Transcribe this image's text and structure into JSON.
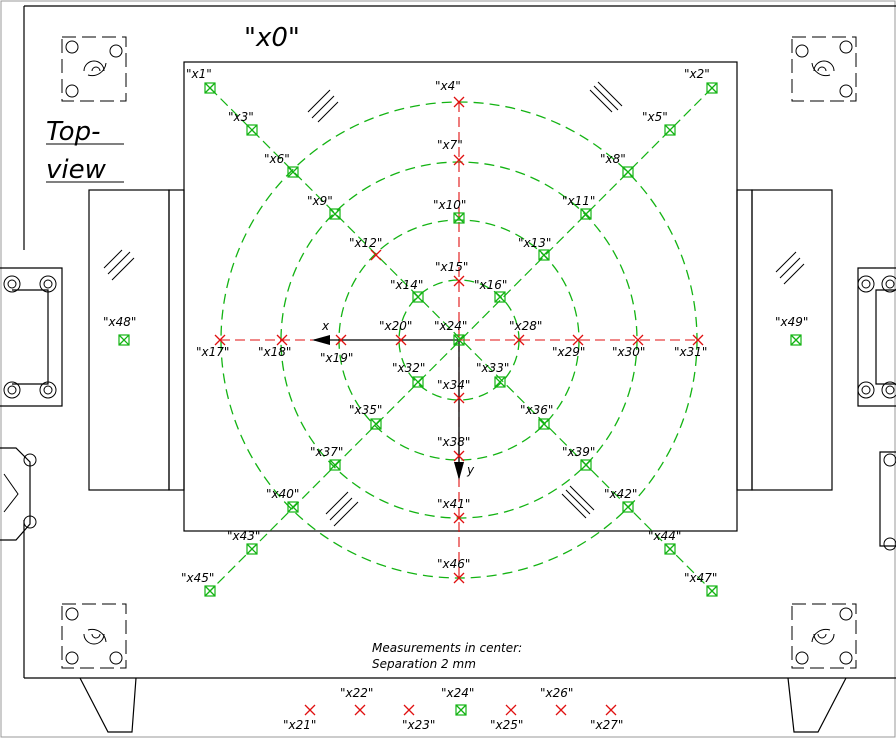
{
  "drawing": {
    "title": "\"x0\"",
    "view_line1": "Top-",
    "view_line2": "view",
    "note_line1": "Measurements in center:",
    "note_line2": "Separation 2 mm",
    "axis_x": "x",
    "axis_y": "y",
    "colors": {
      "red_marker": "#e01010",
      "green_marker": "#13b313",
      "lines": "#000000"
    }
  },
  "points": [
    {
      "label": "\"x1\"",
      "kind": "green"
    },
    {
      "label": "\"x2\"",
      "kind": "green"
    },
    {
      "label": "\"x3\"",
      "kind": "green"
    },
    {
      "label": "\"x4\"",
      "kind": "red"
    },
    {
      "label": "\"x5\"",
      "kind": "green"
    },
    {
      "label": "\"x6\"",
      "kind": "green"
    },
    {
      "label": "\"x7\"",
      "kind": "red"
    },
    {
      "label": "\"x8\"",
      "kind": "green"
    },
    {
      "label": "\"x9\"",
      "kind": "green"
    },
    {
      "label": "\"x10\"",
      "kind": "green"
    },
    {
      "label": "\"x11\"",
      "kind": "green"
    },
    {
      "label": "\"x12\"",
      "kind": "red"
    },
    {
      "label": "\"x13\"",
      "kind": "green"
    },
    {
      "label": "\"x14\"",
      "kind": "green"
    },
    {
      "label": "\"x15\"",
      "kind": "red"
    },
    {
      "label": "\"x16\"",
      "kind": "green"
    },
    {
      "label": "\"x17\"",
      "kind": "red"
    },
    {
      "label": "\"x18\"",
      "kind": "red"
    },
    {
      "label": "\"x19\"",
      "kind": "red"
    },
    {
      "label": "\"x20\"",
      "kind": "red"
    },
    {
      "label": "\"x24\"",
      "kind": "green"
    },
    {
      "label": "\"x28\"",
      "kind": "red"
    },
    {
      "label": "\"x29\"",
      "kind": "red"
    },
    {
      "label": "\"x30\"",
      "kind": "red"
    },
    {
      "label": "\"x31\"",
      "kind": "red"
    },
    {
      "label": "\"x32\"",
      "kind": "green"
    },
    {
      "label": "\"x33\"",
      "kind": "green"
    },
    {
      "label": "\"x34\"",
      "kind": "red"
    },
    {
      "label": "\"x35\"",
      "kind": "green"
    },
    {
      "label": "\"x36\"",
      "kind": "green"
    },
    {
      "label": "\"x37\"",
      "kind": "green"
    },
    {
      "label": "\"x38\"",
      "kind": "red"
    },
    {
      "label": "\"x39\"",
      "kind": "green"
    },
    {
      "label": "\"x40\"",
      "kind": "green"
    },
    {
      "label": "\"x41\"",
      "kind": "red"
    },
    {
      "label": "\"x42\"",
      "kind": "green"
    },
    {
      "label": "\"x43\"",
      "kind": "green"
    },
    {
      "label": "\"x44\"",
      "kind": "green"
    },
    {
      "label": "\"x45\"",
      "kind": "green"
    },
    {
      "label": "\"x46\"",
      "kind": "red"
    },
    {
      "label": "\"x47\"",
      "kind": "green"
    },
    {
      "label": "\"x48\"",
      "kind": "green"
    },
    {
      "label": "\"x49\"",
      "kind": "green"
    }
  ],
  "center_points": [
    {
      "label": "\"x21\"",
      "kind": "red"
    },
    {
      "label": "\"x22\"",
      "kind": "red"
    },
    {
      "label": "\"x23\"",
      "kind": "red"
    },
    {
      "label": "\"x24\"",
      "kind": "green"
    },
    {
      "label": "\"x25\"",
      "kind": "red"
    },
    {
      "label": "\"x26\"",
      "kind": "red"
    },
    {
      "label": "\"x27\"",
      "kind": "red"
    }
  ]
}
